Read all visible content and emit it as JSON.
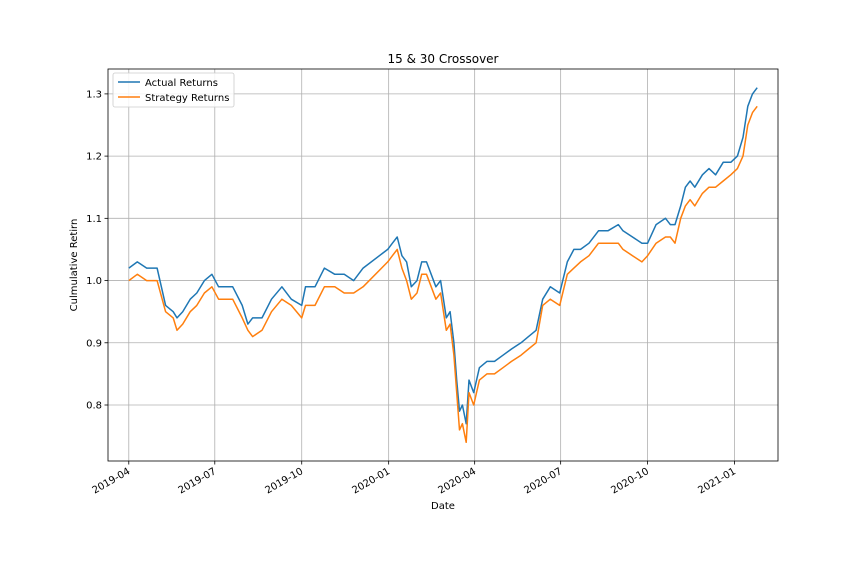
{
  "chart_data": {
    "type": "line",
    "title": "15 & 30 Crossover",
    "xlabel": "Date",
    "ylabel": "Culmulative Retirn",
    "xlim": [
      "2019-03-10",
      "2021-02-16"
    ],
    "ylim": [
      0.71,
      1.34
    ],
    "grid": true,
    "legend_position": "top-left",
    "x_ticks": [
      "2019-04",
      "2019-07",
      "2019-10",
      "2020-01",
      "2020-04",
      "2020-07",
      "2020-10",
      "2021-01"
    ],
    "x_tick_dates": [
      "2019-04-01",
      "2019-07-01",
      "2019-10-01",
      "2020-01-01",
      "2020-04-01",
      "2020-07-01",
      "2020-10-01",
      "2021-01-01"
    ],
    "y_ticks": [
      "0.8",
      "0.9",
      "1.0",
      "1.1",
      "1.2",
      "1.3"
    ],
    "y_tick_values": [
      0.8,
      0.9,
      1.0,
      1.1,
      1.2,
      1.3
    ],
    "x": [
      "2019-04-01",
      "2019-04-10",
      "2019-04-20",
      "2019-05-01",
      "2019-05-10",
      "2019-05-18",
      "2019-05-22",
      "2019-05-28",
      "2019-06-05",
      "2019-06-12",
      "2019-06-20",
      "2019-06-28",
      "2019-07-05",
      "2019-07-12",
      "2019-07-20",
      "2019-07-30",
      "2019-08-05",
      "2019-08-10",
      "2019-08-20",
      "2019-08-30",
      "2019-09-10",
      "2019-09-20",
      "2019-10-01",
      "2019-10-05",
      "2019-10-15",
      "2019-10-25",
      "2019-11-05",
      "2019-11-15",
      "2019-11-25",
      "2019-12-05",
      "2019-12-31",
      "2020-01-05",
      "2020-01-10",
      "2020-01-15",
      "2020-01-20",
      "2020-01-25",
      "2020-01-31",
      "2020-02-05",
      "2020-02-10",
      "2020-02-20",
      "2020-02-25",
      "2020-03-02",
      "2020-03-06",
      "2020-03-10",
      "2020-03-13",
      "2020-03-16",
      "2020-03-19",
      "2020-03-23",
      "2020-03-26",
      "2020-03-31",
      "2020-04-06",
      "2020-04-14",
      "2020-04-22",
      "2020-05-01",
      "2020-05-10",
      "2020-05-20",
      "2020-05-28",
      "2020-06-05",
      "2020-06-12",
      "2020-06-20",
      "2020-06-30",
      "2020-07-08",
      "2020-07-15",
      "2020-07-22",
      "2020-07-31",
      "2020-08-10",
      "2020-08-20",
      "2020-08-31",
      "2020-09-05",
      "2020-09-15",
      "2020-09-25",
      "2020-10-01",
      "2020-10-10",
      "2020-10-20",
      "2020-10-25",
      "2020-10-30",
      "2020-11-05",
      "2020-11-10",
      "2020-11-15",
      "2020-11-20",
      "2020-11-28",
      "2020-12-05",
      "2020-12-12",
      "2020-12-20",
      "2020-12-28",
      "2021-01-04",
      "2021-01-10",
      "2021-01-15",
      "2021-01-20",
      "2021-01-25"
    ],
    "series": [
      {
        "name": "Actual Returns",
        "color": "#1f77b4",
        "values": [
          1.02,
          1.03,
          1.02,
          1.02,
          0.96,
          0.95,
          0.94,
          0.95,
          0.97,
          0.98,
          1.0,
          1.01,
          0.99,
          0.99,
          0.99,
          0.96,
          0.93,
          0.94,
          0.94,
          0.97,
          0.99,
          0.97,
          0.96,
          0.99,
          0.99,
          1.02,
          1.01,
          1.01,
          1.0,
          1.02,
          1.05,
          1.06,
          1.07,
          1.04,
          1.03,
          0.99,
          1.0,
          1.03,
          1.03,
          0.99,
          1.0,
          0.94,
          0.95,
          0.9,
          0.84,
          0.79,
          0.8,
          0.77,
          0.84,
          0.82,
          0.86,
          0.87,
          0.87,
          0.88,
          0.89,
          0.9,
          0.91,
          0.92,
          0.97,
          0.99,
          0.98,
          1.03,
          1.05,
          1.05,
          1.06,
          1.08,
          1.08,
          1.09,
          1.08,
          1.07,
          1.06,
          1.06,
          1.09,
          1.1,
          1.09,
          1.09,
          1.12,
          1.15,
          1.16,
          1.15,
          1.17,
          1.18,
          1.17,
          1.19,
          1.19,
          1.2,
          1.23,
          1.28,
          1.3,
          1.31
        ]
      },
      {
        "name": "Strategy Returns",
        "color": "#ff7f0e",
        "values": [
          1.0,
          1.01,
          1.0,
          1.0,
          0.95,
          0.94,
          0.92,
          0.93,
          0.95,
          0.96,
          0.98,
          0.99,
          0.97,
          0.97,
          0.97,
          0.94,
          0.92,
          0.91,
          0.92,
          0.95,
          0.97,
          0.96,
          0.94,
          0.96,
          0.96,
          0.99,
          0.99,
          0.98,
          0.98,
          0.99,
          1.03,
          1.04,
          1.05,
          1.02,
          1.0,
          0.97,
          0.98,
          1.01,
          1.01,
          0.97,
          0.98,
          0.92,
          0.93,
          0.88,
          0.82,
          0.76,
          0.77,
          0.74,
          0.82,
          0.8,
          0.84,
          0.85,
          0.85,
          0.86,
          0.87,
          0.88,
          0.89,
          0.9,
          0.96,
          0.97,
          0.96,
          1.01,
          1.02,
          1.03,
          1.04,
          1.06,
          1.06,
          1.06,
          1.05,
          1.04,
          1.03,
          1.04,
          1.06,
          1.07,
          1.07,
          1.06,
          1.1,
          1.12,
          1.13,
          1.12,
          1.14,
          1.15,
          1.15,
          1.16,
          1.17,
          1.18,
          1.2,
          1.25,
          1.27,
          1.28
        ]
      }
    ]
  }
}
